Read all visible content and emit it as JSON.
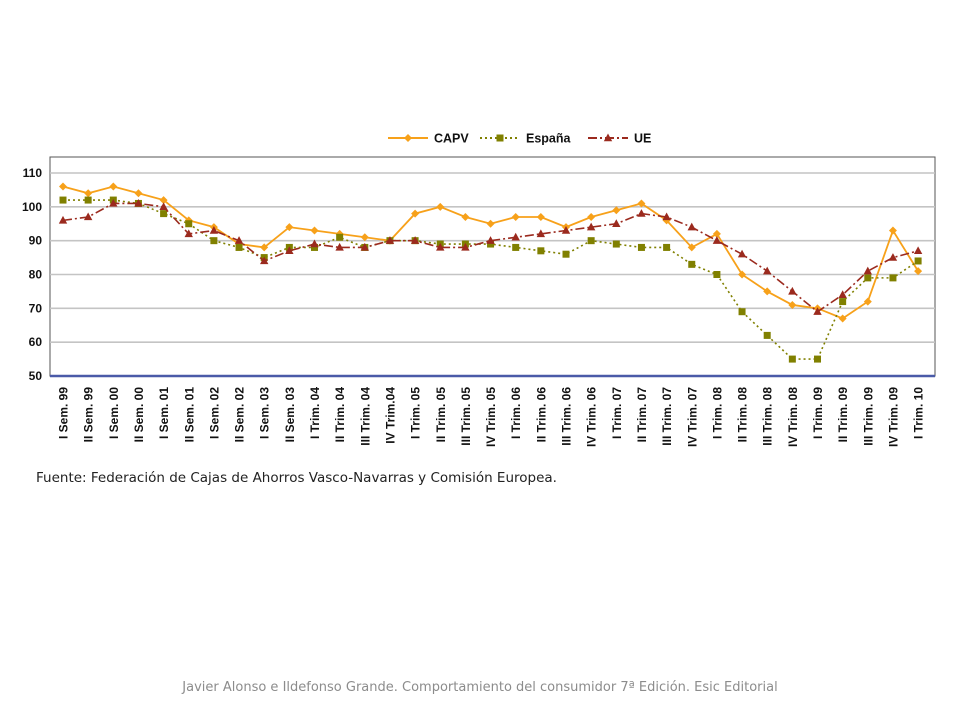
{
  "chart_data": {
    "type": "line",
    "categories": [
      "I Sem. 99",
      "II Sem. 99",
      "I Sem. 00",
      "II Sem. 00",
      "I Sem. 01",
      "II Sem. 01",
      "I Sem. 02",
      "II Sem. 02",
      "I Sem. 03",
      "II Sem. 03",
      "I Trim. 04",
      "II Trim. 04",
      "III Trim. 04",
      "IV Trim.04",
      "I Trim. 05",
      "II Trim. 05",
      "III Trim. 05",
      "IV Trim. 05",
      "I Trim. 06",
      "II Trim. 06",
      "III Trim. 06",
      "IV Trim. 06",
      "I Trim. 07",
      "II Trim. 07",
      "III Trim. 07",
      "IV Trim. 07",
      "I Trim. 08",
      "II Trim. 08",
      "III Trim. 08",
      "IV Trim. 08",
      "I Trim. 09",
      "II Trim. 09",
      "III Trim. 09",
      "IV Trim. 09",
      "I Trim. 10"
    ],
    "series": [
      {
        "name": "CAPV",
        "color": "#f7a11a",
        "marker": "diamond",
        "line": "solid",
        "values": [
          106,
          104,
          106,
          104,
          102,
          96,
          94,
          89,
          88,
          94,
          93,
          92,
          91,
          90,
          98,
          100,
          97,
          95,
          97,
          97,
          94,
          97,
          99,
          101,
          96,
          88,
          92,
          80,
          75,
          71,
          70,
          67,
          72,
          93,
          81
        ]
      },
      {
        "name": "España",
        "color": "#808000",
        "marker": "square",
        "line": "dotted",
        "values": [
          102,
          102,
          102,
          101,
          98,
          95,
          90,
          88,
          85,
          88,
          88,
          91,
          88,
          90,
          90,
          89,
          89,
          89,
          88,
          87,
          86,
          90,
          89,
          88,
          88,
          83,
          80,
          69,
          62,
          55,
          55,
          72,
          79,
          79,
          84
        ]
      },
      {
        "name": "UE",
        "color": "#9b2a1e",
        "marker": "triangle",
        "line": "dashdot",
        "values": [
          96,
          97,
          101,
          101,
          100,
          92,
          93,
          90,
          84,
          87,
          89,
          88,
          88,
          90,
          90,
          88,
          88,
          90,
          91,
          92,
          93,
          94,
          95,
          98,
          97,
          94,
          90,
          86,
          81,
          75,
          69,
          74,
          81,
          85,
          87
        ]
      }
    ],
    "ylim": [
      50,
      110
    ],
    "yticks": [
      "50",
      "60",
      "70",
      "80",
      "90",
      "100",
      "110"
    ],
    "grid": true,
    "legend_position": "top-center"
  },
  "source_text": "Fuente: Federación de Cajas de Ahorros Vasco-Navarras y Comisión Europea.",
  "footer_text": "Javier Alonso e Ildefonso Grande. Comportamiento del consumidor 7ª Edición. Esic Editorial"
}
